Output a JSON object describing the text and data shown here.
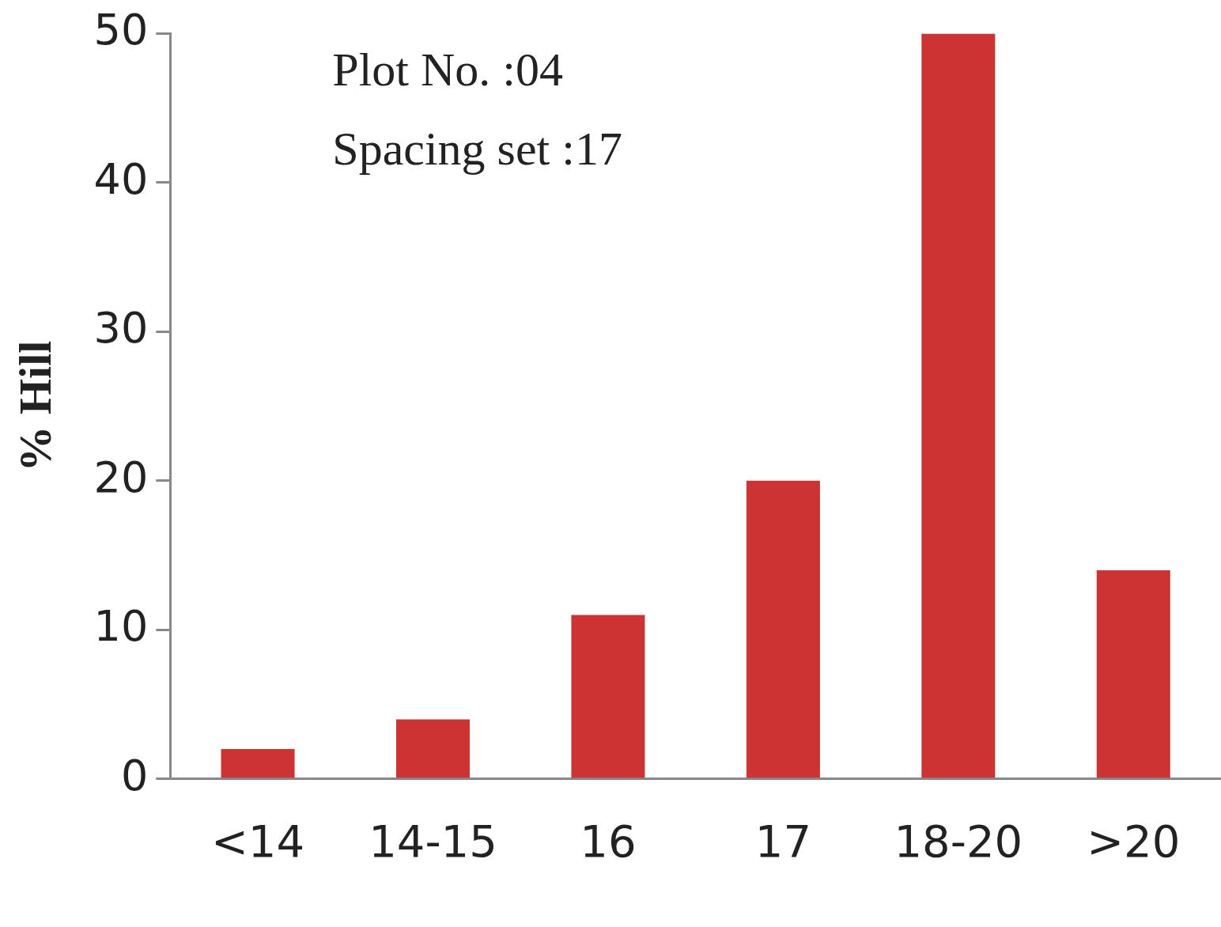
{
  "chart_data": {
    "type": "bar",
    "ylabel": "% Hill",
    "categories": [
      "<14",
      "14-15",
      "16",
      "17",
      "18-20",
      ">20"
    ],
    "values": [
      2,
      4,
      11,
      20,
      50,
      14
    ],
    "color": "#cc3333",
    "ylim": [
      0,
      50
    ],
    "yticks": [
      0,
      10,
      20,
      30,
      40,
      50
    ],
    "grid": false,
    "legend": false,
    "annotations": [
      "Plot No. :04",
      "Spacing set :17"
    ]
  }
}
